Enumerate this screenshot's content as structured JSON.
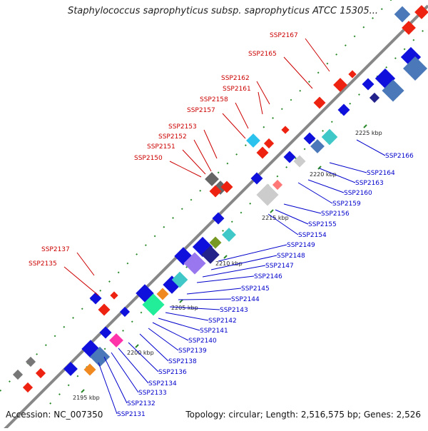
{
  "title": "Staphylococcus saprophyticus subsp. saprophyticus ATCC 15305...",
  "footer": {
    "accession": "Accession: NC_007350",
    "summary": "Topology: circular; Length: 2,516,575 bp; Genes: 2,526"
  },
  "ticks": [
    "2195 kbp",
    "2200 kbp",
    "2205 kbp",
    "2210 kbp",
    "2215 kbp",
    "2220 kbp",
    "2225 kbp"
  ],
  "forward_labels": [
    "SSP2135",
    "SSP2137",
    "SSP2150",
    "SSP2151",
    "SSP2152",
    "SSP2153",
    "SSP2157",
    "SSP2158",
    "SSP2161",
    "SSP2162",
    "SSP2165",
    "SSP2167"
  ],
  "reverse_labels": [
    "SSP2131",
    "SSP2132",
    "SSP2133",
    "SSP2134",
    "SSP2136",
    "SSP2138",
    "SSP2139",
    "SSP2140",
    "SSP2141",
    "SSP2142",
    "SSP2143",
    "SSP2144",
    "SSP2145",
    "SSP2146",
    "SSP2147",
    "SSP2148",
    "SSP2149",
    "SSP2154",
    "SSP2155",
    "SSP2156",
    "SSP2159",
    "SSP2160",
    "SSP2163",
    "SSP2164",
    "SSP2166"
  ],
  "colors": {
    "forward_label": "#cc0000",
    "reverse_label": "#0000cc",
    "forward_gene": "#ee1111",
    "reverse_gene": "#1010dd",
    "backbone": "#888888"
  }
}
